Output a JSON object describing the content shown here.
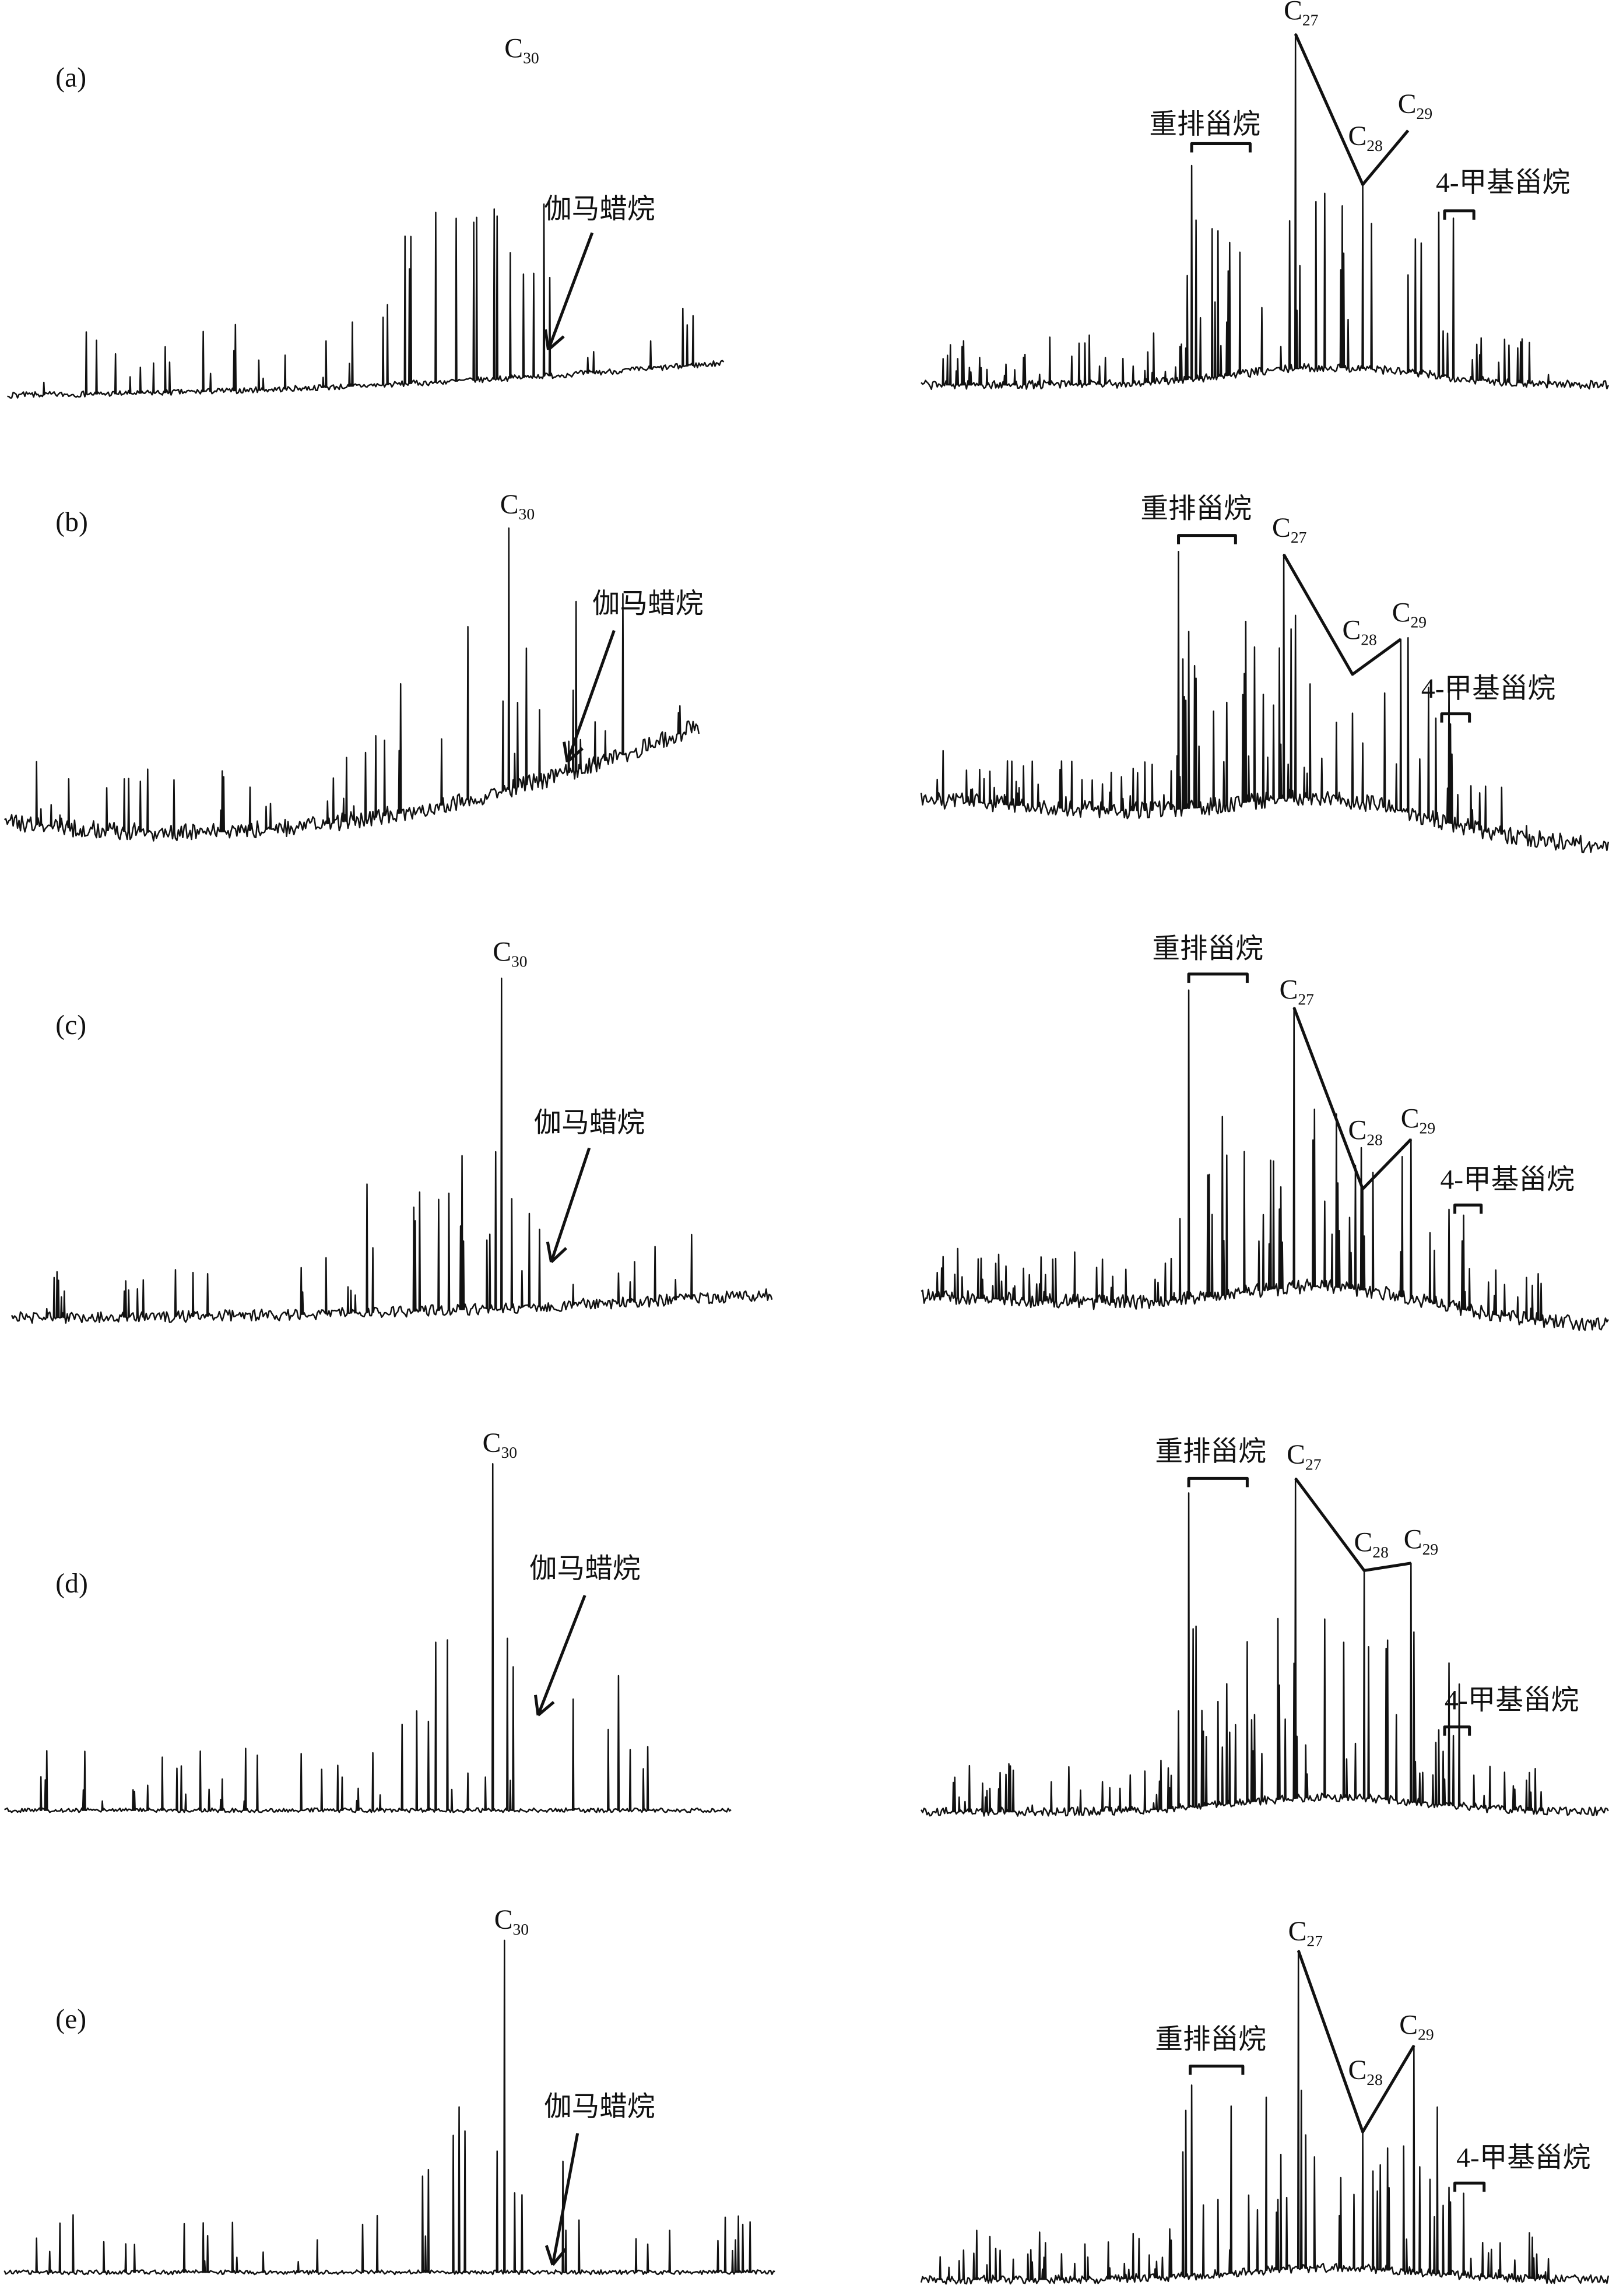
{
  "panels": [
    {
      "label": "(a)",
      "hopane": {
        "letter": "C",
        "sub": "30"
      },
      "gammacerane": "伽马蜡烷",
      "rearranged_steranes": "重排甾烷",
      "steranes": [
        {
          "letter": "C",
          "sub": "27"
        },
        {
          "letter": "C",
          "sub": "28"
        },
        {
          "letter": "C",
          "sub": "29"
        }
      ],
      "methyl_steranes": "4-甲基甾烷"
    },
    {
      "label": "(b)",
      "hopane": {
        "letter": "C",
        "sub": "30"
      },
      "gammacerane": "伽马蜡烷",
      "rearranged_steranes": "重排甾烷",
      "steranes": [
        {
          "letter": "C",
          "sub": "27"
        },
        {
          "letter": "C",
          "sub": "28"
        },
        {
          "letter": "C",
          "sub": "29"
        }
      ],
      "methyl_steranes": "4-甲基甾烷"
    },
    {
      "label": "(c)",
      "hopane": {
        "letter": "C",
        "sub": "30"
      },
      "gammacerane": "伽马蜡烷",
      "rearranged_steranes": "重排甾烷",
      "steranes": [
        {
          "letter": "C",
          "sub": "27"
        },
        {
          "letter": "C",
          "sub": "28"
        },
        {
          "letter": "C",
          "sub": "29"
        }
      ],
      "methyl_steranes": "4-甲基甾烷"
    },
    {
      "label": "(d)",
      "hopane": {
        "letter": "C",
        "sub": "30"
      },
      "gammacerane": "伽马蜡烷",
      "rearranged_steranes": "重排甾烷",
      "steranes": [
        {
          "letter": "C",
          "sub": "27"
        },
        {
          "letter": "C",
          "sub": "28"
        },
        {
          "letter": "C",
          "sub": "29"
        }
      ],
      "methyl_steranes": "4-甲基甾烷"
    },
    {
      "label": "(e)",
      "hopane": {
        "letter": "C",
        "sub": "30"
      },
      "gammacerane": "伽马蜡烷",
      "rearranged_steranes": "重排甾烷",
      "steranes": [
        {
          "letter": "C",
          "sub": "27"
        },
        {
          "letter": "C",
          "sub": "28"
        },
        {
          "letter": "C",
          "sub": "29"
        }
      ],
      "methyl_steranes": "4-甲基甾烷"
    }
  ]
}
